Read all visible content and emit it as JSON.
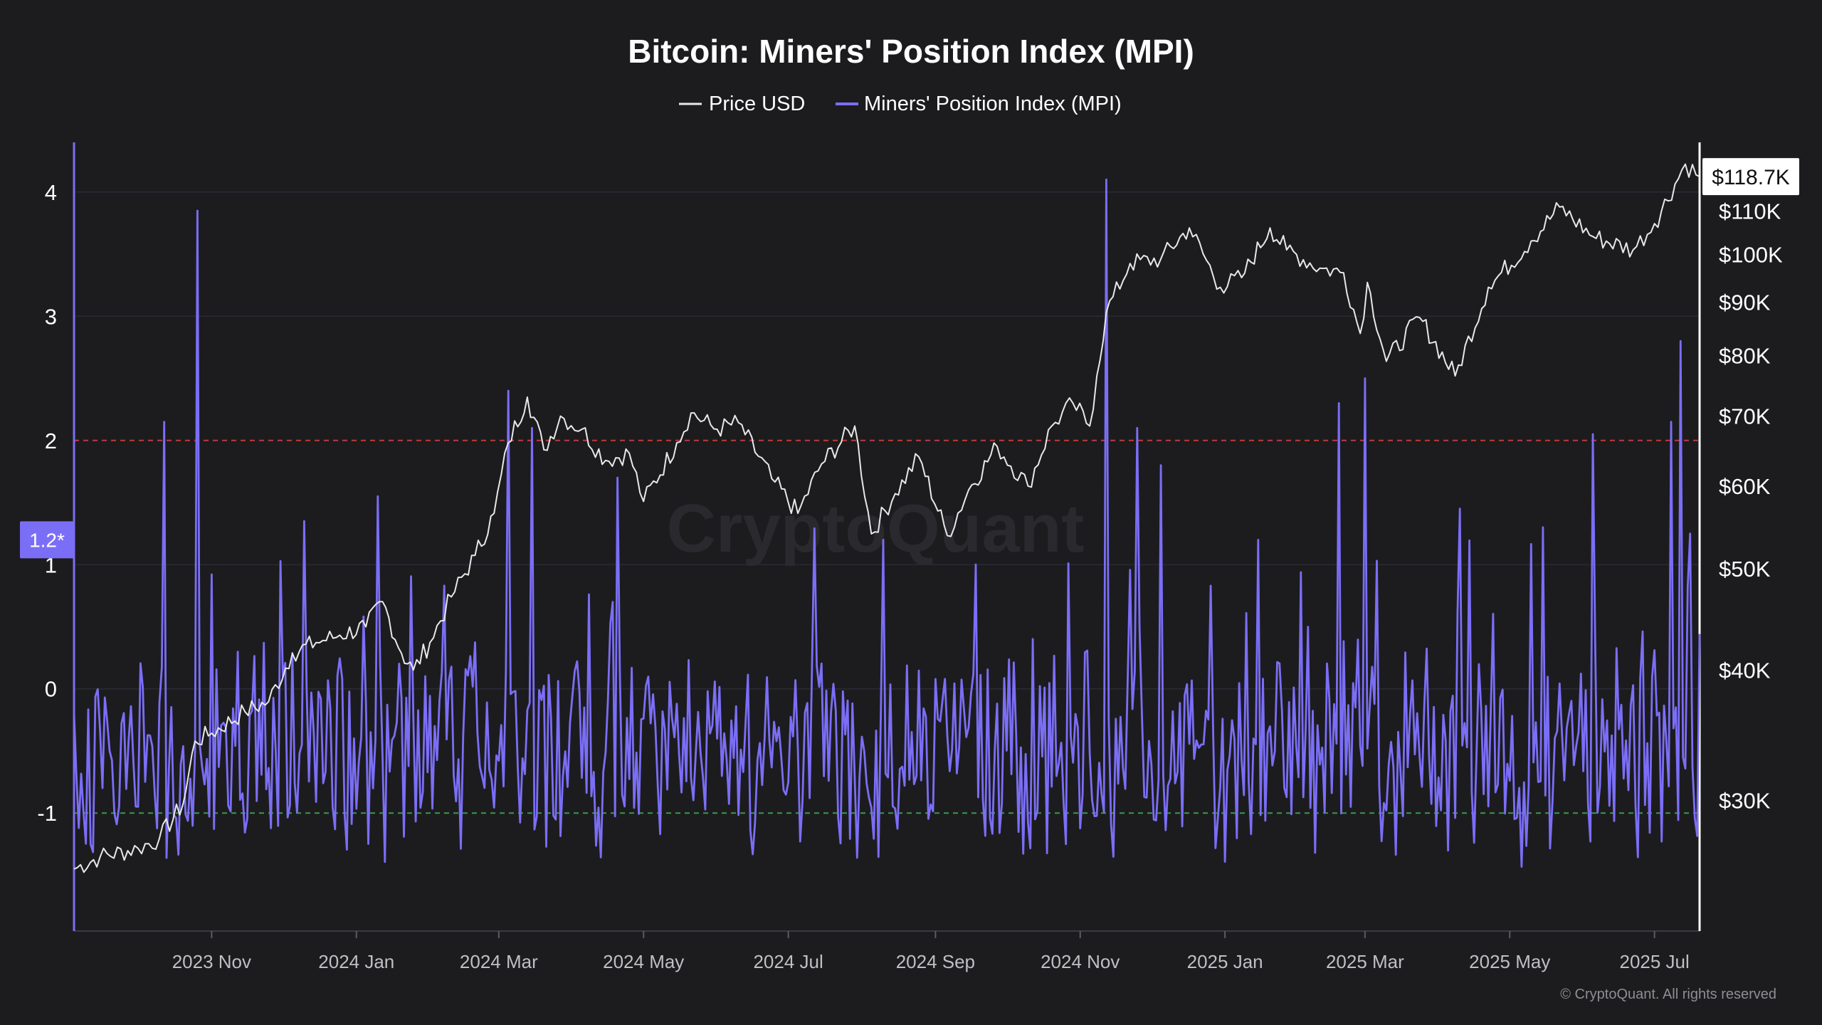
{
  "chart_data": {
    "type": "line",
    "title": "Bitcoin: Miners' Position Index (MPI)",
    "legend": [
      {
        "name": "Price USD",
        "color": "#e8e8e8"
      },
      {
        "name": "Miners' Position Index (MPI)",
        "color": "#7b6ef6"
      }
    ],
    "legend_position": "top-center",
    "colors": {
      "background": "#1c1c1e",
      "price": "#e8e8e8",
      "mpi": "#7b6ef6",
      "upper_threshold": "#c0393b",
      "lower_threshold": "#3a9a4a",
      "text": "#ffffff",
      "tick_text": "#bfbfc4"
    },
    "x_range": [
      "2023-09-04",
      "2025-07-20"
    ],
    "x_ticks": [
      {
        "date": "2023-11-01",
        "label": "2023 Nov"
      },
      {
        "date": "2024-01-01",
        "label": "2024 Jan"
      },
      {
        "date": "2024-03-01",
        "label": "2024 Mar"
      },
      {
        "date": "2024-05-01",
        "label": "2024 May"
      },
      {
        "date": "2024-07-01",
        "label": "2024 Jul"
      },
      {
        "date": "2024-09-01",
        "label": "2024 Sep"
      },
      {
        "date": "2024-11-01",
        "label": "2024 Nov"
      },
      {
        "date": "2025-01-01",
        "label": "2025 Jan"
      },
      {
        "date": "2025-03-01",
        "label": "2025 Mar"
      },
      {
        "date": "2025-05-01",
        "label": "2025 May"
      },
      {
        "date": "2025-07-01",
        "label": "2025 Jul"
      }
    ],
    "y_left": {
      "range": [
        -1.95,
        4.4
      ],
      "ticks": [
        {
          "value": 4,
          "label": "4"
        },
        {
          "value": 3,
          "label": "3"
        },
        {
          "value": 2,
          "label": "2"
        },
        {
          "value": 1,
          "label": "1"
        },
        {
          "value": 0,
          "label": "0"
        },
        {
          "value": -1,
          "label": "-1"
        }
      ],
      "current_marker": {
        "value": 1.2,
        "label": "1.2*"
      },
      "thresholds": [
        2,
        -1
      ]
    },
    "y_right": {
      "scale": "log",
      "range": [
        22500,
        128000
      ],
      "ticks": [
        {
          "value": 110000,
          "label": "$110K"
        },
        {
          "value": 100000,
          "label": "$100K"
        },
        {
          "value": 90000,
          "label": "$90K"
        },
        {
          "value": 80000,
          "label": "$80K"
        },
        {
          "value": 70000,
          "label": "$70K"
        },
        {
          "value": 60000,
          "label": "$60K"
        },
        {
          "value": 50000,
          "label": "$50K"
        },
        {
          "value": 40000,
          "label": "$40K"
        },
        {
          "value": 30000,
          "label": "$30K"
        }
      ],
      "current_marker": {
        "value": 118700,
        "label": "$118.7K"
      }
    },
    "price_series": {
      "name": "Price USD",
      "points": [
        [
          "2023-09-04",
          25800
        ],
        [
          "2023-09-15",
          26500
        ],
        [
          "2023-10-01",
          27000
        ],
        [
          "2023-10-10",
          27600
        ],
        [
          "2023-10-20",
          29800
        ],
        [
          "2023-10-25",
          34200
        ],
        [
          "2023-11-01",
          34800
        ],
        [
          "2023-11-15",
          36500
        ],
        [
          "2023-11-25",
          37300
        ],
        [
          "2023-12-05",
          41500
        ],
        [
          "2023-12-15",
          42500
        ],
        [
          "2023-12-25",
          43200
        ],
        [
          "2024-01-05",
          44000
        ],
        [
          "2024-01-12",
          46500
        ],
        [
          "2024-01-20",
          41500
        ],
        [
          "2024-01-25",
          40000
        ],
        [
          "2024-02-01",
          42500
        ],
        [
          "2024-02-10",
          47000
        ],
        [
          "2024-02-20",
          51500
        ],
        [
          "2024-02-28",
          56500
        ],
        [
          "2024-03-05",
          66000
        ],
        [
          "2024-03-13",
          73000
        ],
        [
          "2024-03-20",
          65000
        ],
        [
          "2024-03-27",
          70000
        ],
        [
          "2024-04-05",
          68000
        ],
        [
          "2024-04-15",
          63500
        ],
        [
          "2024-04-25",
          64500
        ],
        [
          "2024-05-01",
          58000
        ],
        [
          "2024-05-15",
          66000
        ],
        [
          "2024-05-21",
          70500
        ],
        [
          "2024-06-01",
          68000
        ],
        [
          "2024-06-10",
          69000
        ],
        [
          "2024-06-24",
          61000
        ],
        [
          "2024-07-05",
          56500
        ],
        [
          "2024-07-15",
          63000
        ],
        [
          "2024-07-29",
          68500
        ],
        [
          "2024-08-05",
          54000
        ],
        [
          "2024-08-15",
          59000
        ],
        [
          "2024-08-25",
          64000
        ],
        [
          "2024-09-06",
          53800
        ],
        [
          "2024-09-15",
          59500
        ],
        [
          "2024-09-27",
          65500
        ],
        [
          "2024-10-10",
          60000
        ],
        [
          "2024-10-20",
          68500
        ],
        [
          "2024-10-29",
          72000
        ],
        [
          "2024-11-05",
          68500
        ],
        [
          "2024-11-08",
          76500
        ],
        [
          "2024-11-12",
          88000
        ],
        [
          "2024-11-22",
          98000
        ],
        [
          "2024-12-05",
          99000
        ],
        [
          "2024-12-17",
          106000
        ],
        [
          "2024-12-30",
          93000
        ],
        [
          "2025-01-08",
          95000
        ],
        [
          "2025-01-20",
          106000
        ],
        [
          "2025-01-27",
          101000
        ],
        [
          "2025-02-10",
          97000
        ],
        [
          "2025-02-20",
          96000
        ],
        [
          "2025-02-27",
          84000
        ],
        [
          "2025-03-02",
          94000
        ],
        [
          "2025-03-10",
          79000
        ],
        [
          "2025-03-24",
          87000
        ],
        [
          "2025-04-08",
          76500
        ],
        [
          "2025-04-22",
          93000
        ],
        [
          "2025-05-10",
          103000
        ],
        [
          "2025-05-22",
          111000
        ],
        [
          "2025-06-05",
          104000
        ],
        [
          "2025-06-22",
          101000
        ],
        [
          "2025-07-01",
          107000
        ],
        [
          "2025-07-14",
          122000
        ],
        [
          "2025-07-20",
          118700
        ]
      ]
    },
    "mpi_series": {
      "name": "Miners' Position Index (MPI)",
      "base_range": [
        -1.55,
        0.45
      ],
      "peaks": [
        [
          "2023-10-12",
          2.15
        ],
        [
          "2023-10-26",
          3.85
        ],
        [
          "2023-12-10",
          1.35
        ],
        [
          "2024-01-10",
          1.55
        ],
        [
          "2024-03-05",
          2.4
        ],
        [
          "2024-03-15",
          2.1
        ],
        [
          "2024-04-20",
          1.7
        ],
        [
          "2024-08-10",
          1.2
        ],
        [
          "2024-11-12",
          4.1
        ],
        [
          "2024-11-25",
          2.1
        ],
        [
          "2024-12-05",
          1.8
        ],
        [
          "2025-01-15",
          1.2
        ],
        [
          "2025-02-18",
          2.3
        ],
        [
          "2025-03-01",
          2.5
        ],
        [
          "2025-04-10",
          1.45
        ],
        [
          "2025-05-15",
          1.3
        ],
        [
          "2025-06-05",
          2.05
        ],
        [
          "2025-07-08",
          2.15
        ],
        [
          "2025-07-12",
          2.8
        ],
        [
          "2025-07-16",
          1.25
        ]
      ],
      "last_value": 1.2
    }
  },
  "watermark": "CryptoQuant",
  "copyright": "© CryptoQuant. All rights reserved"
}
